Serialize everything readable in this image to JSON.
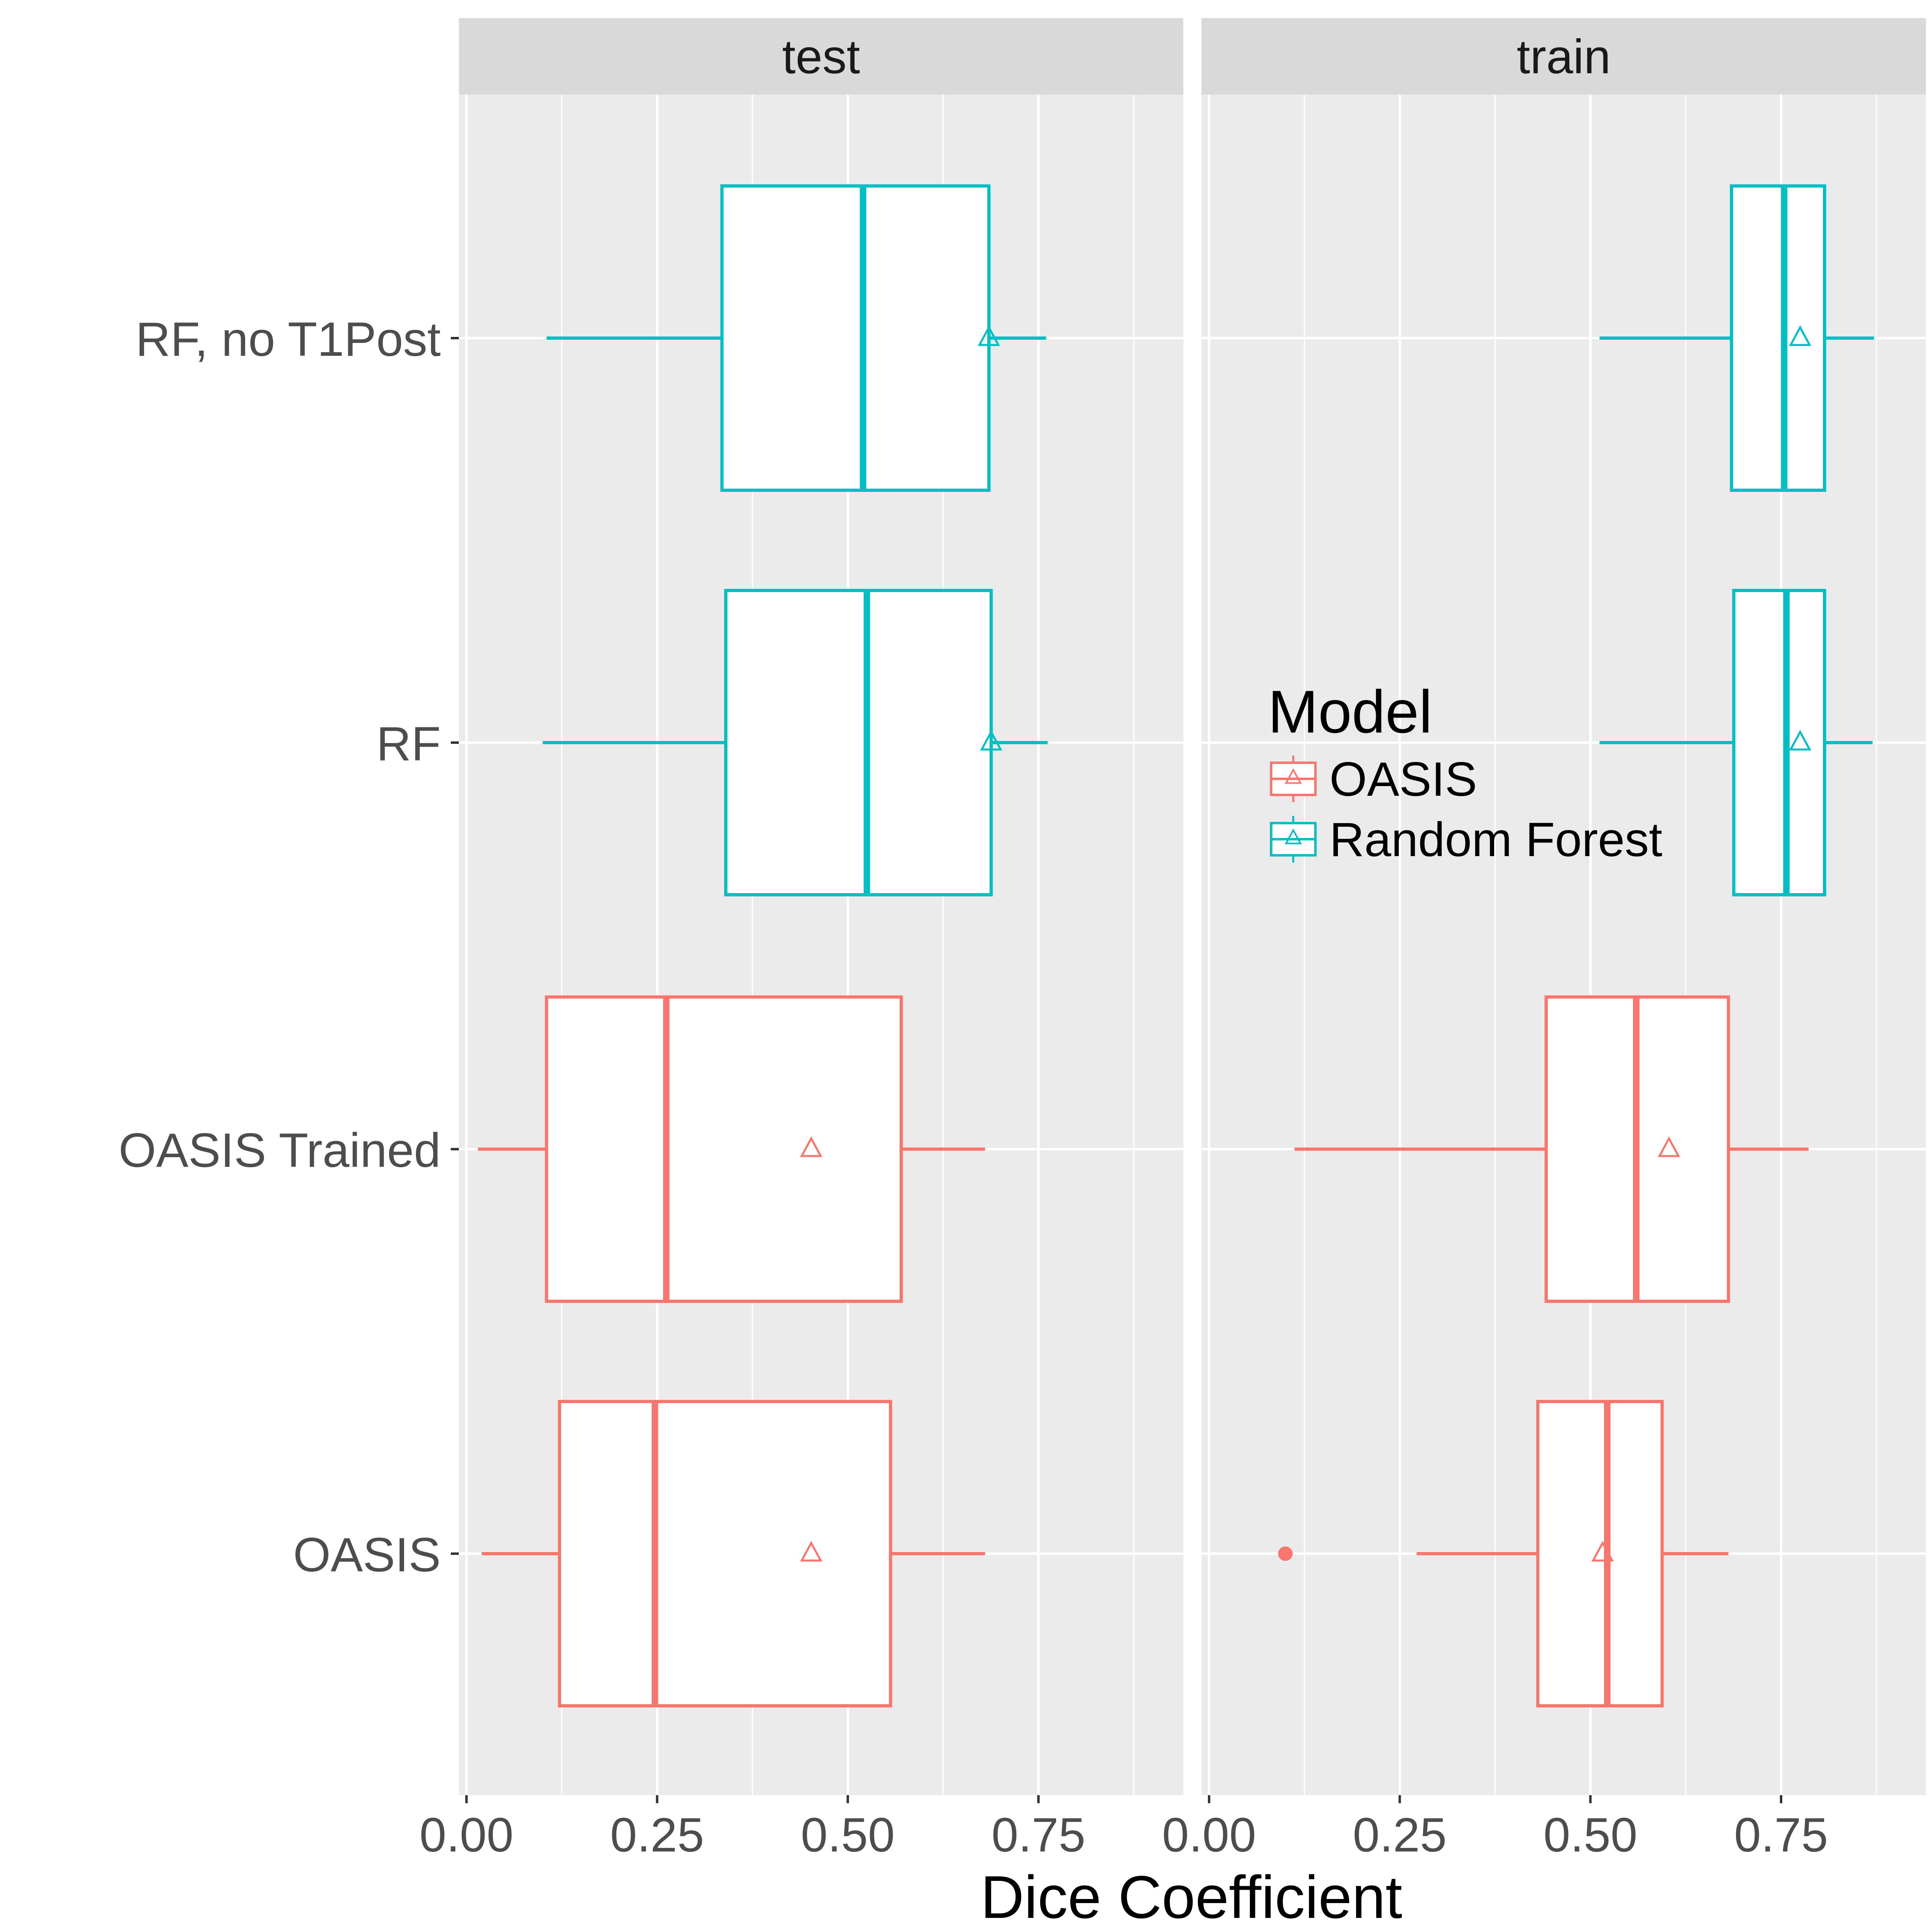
{
  "chart_data": {
    "type": "boxplot",
    "orientation": "horizontal",
    "xlabel": "Dice Coefficient",
    "xlim": [
      -0.01,
      0.94
    ],
    "xticks": [
      0.0,
      0.25,
      0.5,
      0.75
    ],
    "xtick_labels": [
      "0.00",
      "0.25",
      "0.50",
      "0.75"
    ],
    "categories": [
      "RF, no T1Post",
      "RF",
      "OASIS Trained",
      "OASIS"
    ],
    "grid": true,
    "legend": {
      "title": "Model",
      "placement": "inside-right",
      "entries": [
        {
          "label": "OASIS",
          "color": "#F8766D"
        },
        {
          "label": "Random Forest",
          "color": "#00BFC4"
        }
      ]
    },
    "colors": {
      "OASIS": "#F8766D",
      "Random Forest": "#00BFC4",
      "panel_bg": "#EBEBEB",
      "strip_bg": "#D9D9D9"
    },
    "panels": [
      {
        "label": "test",
        "boxes": [
          {
            "category": "RF, no T1Post",
            "model": "Random Forest",
            "whisker_low": 0.105,
            "q1": 0.335,
            "median": 0.52,
            "q3": 0.685,
            "whisker_high": 0.76,
            "mean": 0.685
          },
          {
            "category": "RF",
            "model": "Random Forest",
            "whisker_low": 0.1,
            "q1": 0.34,
            "median": 0.525,
            "q3": 0.688,
            "whisker_high": 0.762,
            "mean": 0.688
          },
          {
            "category": "OASIS Trained",
            "model": "OASIS",
            "whisker_low": 0.015,
            "q1": 0.105,
            "median": 0.262,
            "q3": 0.57,
            "whisker_high": 0.68,
            "mean": 0.452
          },
          {
            "category": "OASIS",
            "model": "OASIS",
            "whisker_low": 0.02,
            "q1": 0.122,
            "median": 0.247,
            "q3": 0.556,
            "whisker_high": 0.68,
            "mean": 0.452
          }
        ],
        "outliers": []
      },
      {
        "label": "train",
        "boxes": [
          {
            "category": "RF, no T1Post",
            "model": "Random Forest",
            "whisker_low": 0.512,
            "q1": 0.685,
            "median": 0.754,
            "q3": 0.807,
            "whisker_high": 0.872,
            "mean": 0.775
          },
          {
            "category": "RF",
            "model": "Random Forest",
            "whisker_low": 0.512,
            "q1": 0.688,
            "median": 0.757,
            "q3": 0.807,
            "whisker_high": 0.87,
            "mean": 0.775
          },
          {
            "category": "OASIS Trained",
            "model": "OASIS",
            "whisker_low": 0.112,
            "q1": 0.442,
            "median": 0.56,
            "q3": 0.681,
            "whisker_high": 0.786,
            "mean": 0.603
          },
          {
            "category": "OASIS",
            "model": "OASIS",
            "whisker_low": 0.272,
            "q1": 0.431,
            "median": 0.522,
            "q3": 0.594,
            "whisker_high": 0.681,
            "mean": 0.516
          }
        ],
        "outliers": [
          {
            "category": "OASIS",
            "value": 0.1,
            "model": "OASIS"
          }
        ]
      }
    ]
  }
}
